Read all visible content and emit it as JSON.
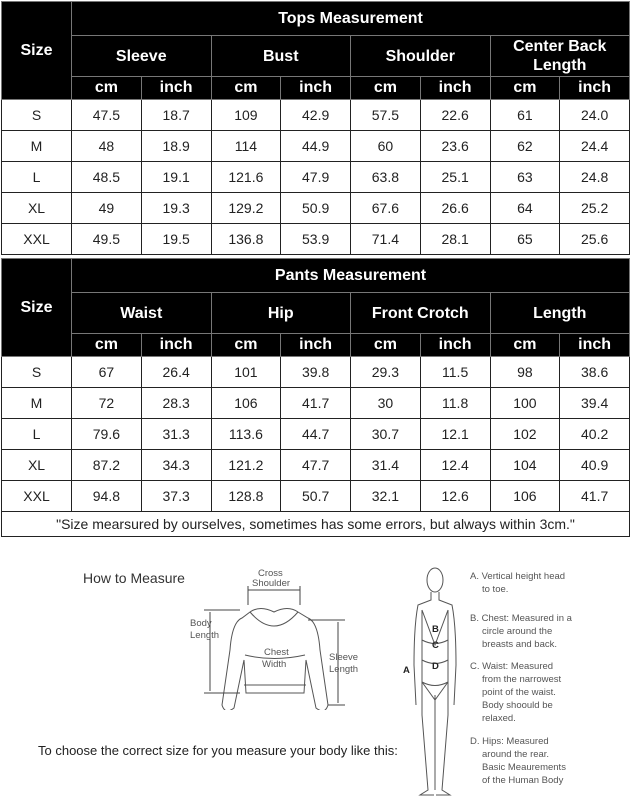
{
  "tops": {
    "title": "Tops Measurement",
    "size_label": "Size",
    "groups": [
      "Sleeve",
      "Bust",
      "Shoulder",
      "Center Back Length"
    ],
    "units": [
      "cm",
      "inch"
    ],
    "rows": [
      [
        "S",
        "47.5",
        "18.7",
        "109",
        "42.9",
        "57.5",
        "22.6",
        "61",
        "24.0"
      ],
      [
        "M",
        "48",
        "18.9",
        "114",
        "44.9",
        "60",
        "23.6",
        "62",
        "24.4"
      ],
      [
        "L",
        "48.5",
        "19.1",
        "121.6",
        "47.9",
        "63.8",
        "25.1",
        "63",
        "24.8"
      ],
      [
        "XL",
        "49",
        "19.3",
        "129.2",
        "50.9",
        "67.6",
        "26.6",
        "64",
        "25.2"
      ],
      [
        "XXL",
        "49.5",
        "19.5",
        "136.8",
        "53.9",
        "71.4",
        "28.1",
        "65",
        "25.6"
      ]
    ]
  },
  "pants": {
    "title": "Pants Measurement",
    "size_label": "Size",
    "groups": [
      "Waist",
      "Hip",
      "Front Crotch",
      "Length"
    ],
    "units": [
      "cm",
      "inch"
    ],
    "rows": [
      [
        "S",
        "67",
        "26.4",
        "101",
        "39.8",
        "29.3",
        "11.5",
        "98",
        "38.6"
      ],
      [
        "M",
        "72",
        "28.3",
        "106",
        "41.7",
        "30",
        "11.8",
        "100",
        "39.4"
      ],
      [
        "L",
        "79.6",
        "31.3",
        "113.6",
        "44.7",
        "30.7",
        "12.1",
        "102",
        "40.2"
      ],
      [
        "XL",
        "87.2",
        "34.3",
        "121.2",
        "47.7",
        "31.4",
        "12.4",
        "104",
        "40.9"
      ],
      [
        "XXL",
        "94.8",
        "37.3",
        "128.8",
        "50.7",
        "32.1",
        "12.6",
        "106",
        "41.7"
      ]
    ],
    "note": "\"Size mearsured by ourselves, sometimes has some errors, but always within 3cm.\""
  },
  "guide": {
    "title": "How to Measure",
    "instruction": "To choose the correct size for you measure your body like this:",
    "labels": {
      "cross": "Cross",
      "shoulder": "Shoulder",
      "body": "Body",
      "length": "Length",
      "chest": "Chest",
      "width": "Width",
      "sleeve": "Sleeve",
      "sleeve_length": "Length",
      "a": "A",
      "b": "B",
      "c": "C",
      "d": "D"
    },
    "descriptions": [
      [
        "A. Vertical height head",
        "to toe."
      ],
      [
        "B. Chest: Measured in a",
        "circle around the",
        "breasts and back."
      ],
      [
        "C. Waist: Measured",
        "from the narrowest",
        "point of the waist.",
        "Body shoould be",
        "relaxed."
      ],
      [
        "D. Hips: Measured",
        "around the rear.",
        "Basic Meaurements",
        "of the Human Body"
      ]
    ]
  }
}
